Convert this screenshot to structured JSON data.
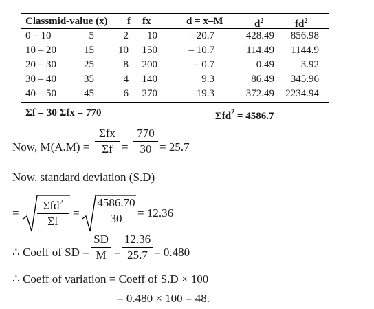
{
  "table": {
    "headers": {
      "classmid": "Classmid-value (x)",
      "f": "f",
      "fx": "fx",
      "d": "d = x–M",
      "d2": "d",
      "fd2": "fd"
    },
    "rows": [
      {
        "class": "0 – 10",
        "x": "5",
        "f": "2",
        "fx": "10",
        "d": "–20.7",
        "d2": "428.49",
        "fd2": "856.98"
      },
      {
        "class": "10 – 20",
        "x": "15",
        "f": "10",
        "fx": "150",
        "d": "– 10.7",
        "d2": "114.49",
        "fd2": "1144.9"
      },
      {
        "class": "20 – 30",
        "x": "25",
        "f": "8",
        "fx": "200",
        "d": "– 0.7",
        "d2": "0.49",
        "fd2": "3.92"
      },
      {
        "class": "30 – 40",
        "x": "35",
        "f": "4",
        "fx": "140",
        "d": "9.3",
        "d2": "86.49",
        "fd2": "345.96"
      },
      {
        "class": "40 – 50",
        "x": "45",
        "f": "6",
        "fx": "270",
        "d": "19.3",
        "d2": "372.49",
        "fd2": "2234.94"
      }
    ],
    "sums": {
      "left": "Σf = 30  Σfx = 770",
      "right": "Σfd",
      "right_value": " = 4586.7"
    }
  },
  "mean": {
    "lead": "Now, M(A.M) =",
    "frac_num": "Σfx",
    "frac_den": "Σf",
    "eq1": "=",
    "value_num": "770",
    "value_den": "30",
    "result": "= 25.7"
  },
  "sd_intro": "Now,  standard  deviation  (S.D)",
  "sd": {
    "eq0": "=",
    "num1": "Σfd",
    "den1": "Σf",
    "eq1": "=",
    "num2": "4586.70",
    "den2": "30",
    "result": "= 12.36"
  },
  "coeff_sd": {
    "lead": "∴ Coeff of SD =",
    "num1": "SD",
    "den1": "M",
    "eq1": "=",
    "num2": "12.36",
    "den2": "25.7",
    "result": "= 0.480"
  },
  "coeff_var": {
    "line1": "∴ Coeff of variation = Coeff of S.D × 100",
    "line2": "= 0.480 × 100 = 48."
  }
}
